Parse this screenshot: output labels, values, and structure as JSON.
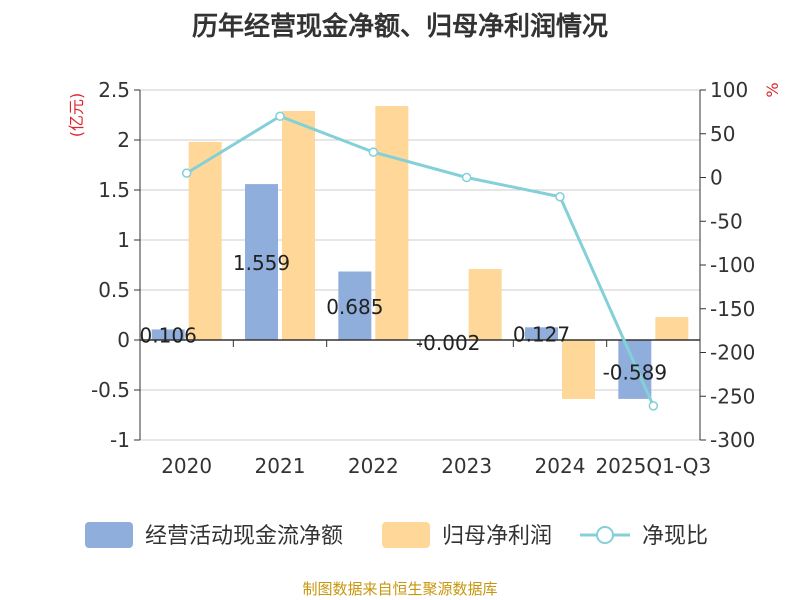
{
  "title": "历年经营现金净额、归母净利润情况",
  "source": "制图数据来自恒生聚源数据库",
  "colors": {
    "bar1": "#8faedc",
    "bar2": "#ffd899",
    "line": "#84d0d8",
    "unit": "#e0252c",
    "axis": "#333333",
    "grid": "#cccccc"
  },
  "chart_data": {
    "type": "bar",
    "categories": [
      "2020",
      "2021",
      "2022",
      "2023",
      "2024",
      "2025Q1-Q3"
    ],
    "y_left": {
      "unit": "(亿元)",
      "range": [
        -1,
        2.5
      ],
      "ticks": [
        "2.5",
        "2",
        "1.5",
        "1",
        "0.5",
        "0",
        "-0.5",
        "-1"
      ]
    },
    "y_right": {
      "unit": "%",
      "range": [
        -300,
        100
      ],
      "ticks": [
        "100",
        "50",
        "0",
        "-50",
        "-100",
        "-150",
        "-200",
        "-250",
        "-300"
      ]
    },
    "grid": true,
    "legend_position": "bottom",
    "series": [
      {
        "name": "经营活动现金流净额",
        "type": "bar",
        "axis": "left",
        "values": [
          0.106,
          1.559,
          0.685,
          -0.002,
          0.127,
          -0.589
        ],
        "labels": [
          "0.106",
          "1.559",
          "0.685",
          "-0.002",
          "0.127",
          "-0.589"
        ]
      },
      {
        "name": "归母净利润",
        "type": "bar",
        "axis": "left",
        "values": [
          1.98,
          2.29,
          2.34,
          0.71,
          -0.59,
          0.23
        ]
      },
      {
        "name": "净现比",
        "type": "line",
        "axis": "right",
        "values": [
          5,
          70,
          29,
          0,
          -22,
          -261
        ]
      }
    ]
  }
}
